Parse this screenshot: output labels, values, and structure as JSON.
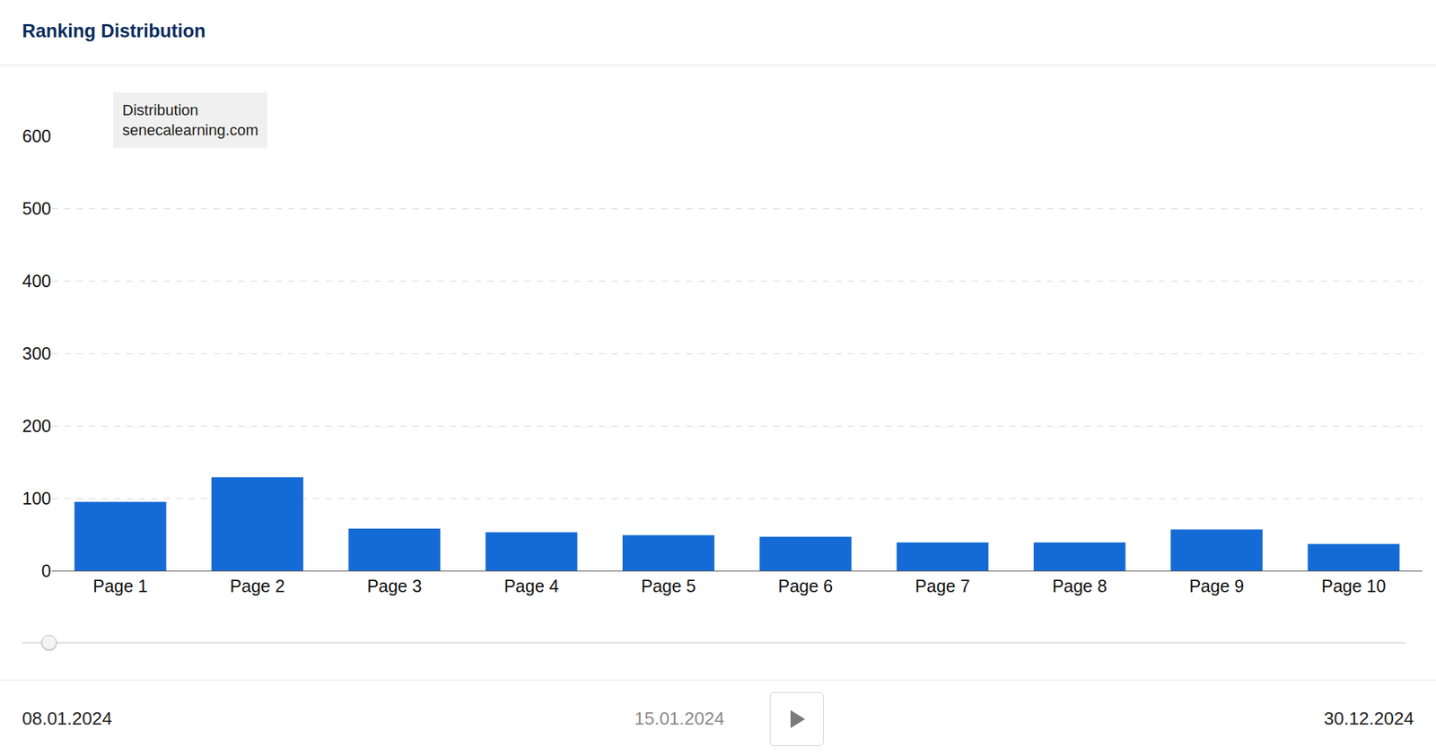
{
  "chart_data": {
    "type": "bar",
    "title": "Ranking Distribution",
    "categories": [
      "Page 1",
      "Page 2",
      "Page 3",
      "Page 4",
      "Page 5",
      "Page 6",
      "Page 7",
      "Page 8",
      "Page 9",
      "Page 10"
    ],
    "series": [
      {
        "name": "senecalearning.com",
        "color": "#156bd5",
        "values": [
          95,
          129,
          58,
          53,
          49,
          47,
          39,
          39,
          57,
          37
        ]
      }
    ],
    "legend_title": "Distribution",
    "legend": "top-left",
    "ylim": [
      0,
      600
    ],
    "yticks": [
      0,
      100,
      200,
      300,
      400,
      500,
      600
    ],
    "grid": true
  },
  "slider": {
    "start": "08.01.2024",
    "current": "15.01.2024",
    "end": "30.12.2024"
  }
}
